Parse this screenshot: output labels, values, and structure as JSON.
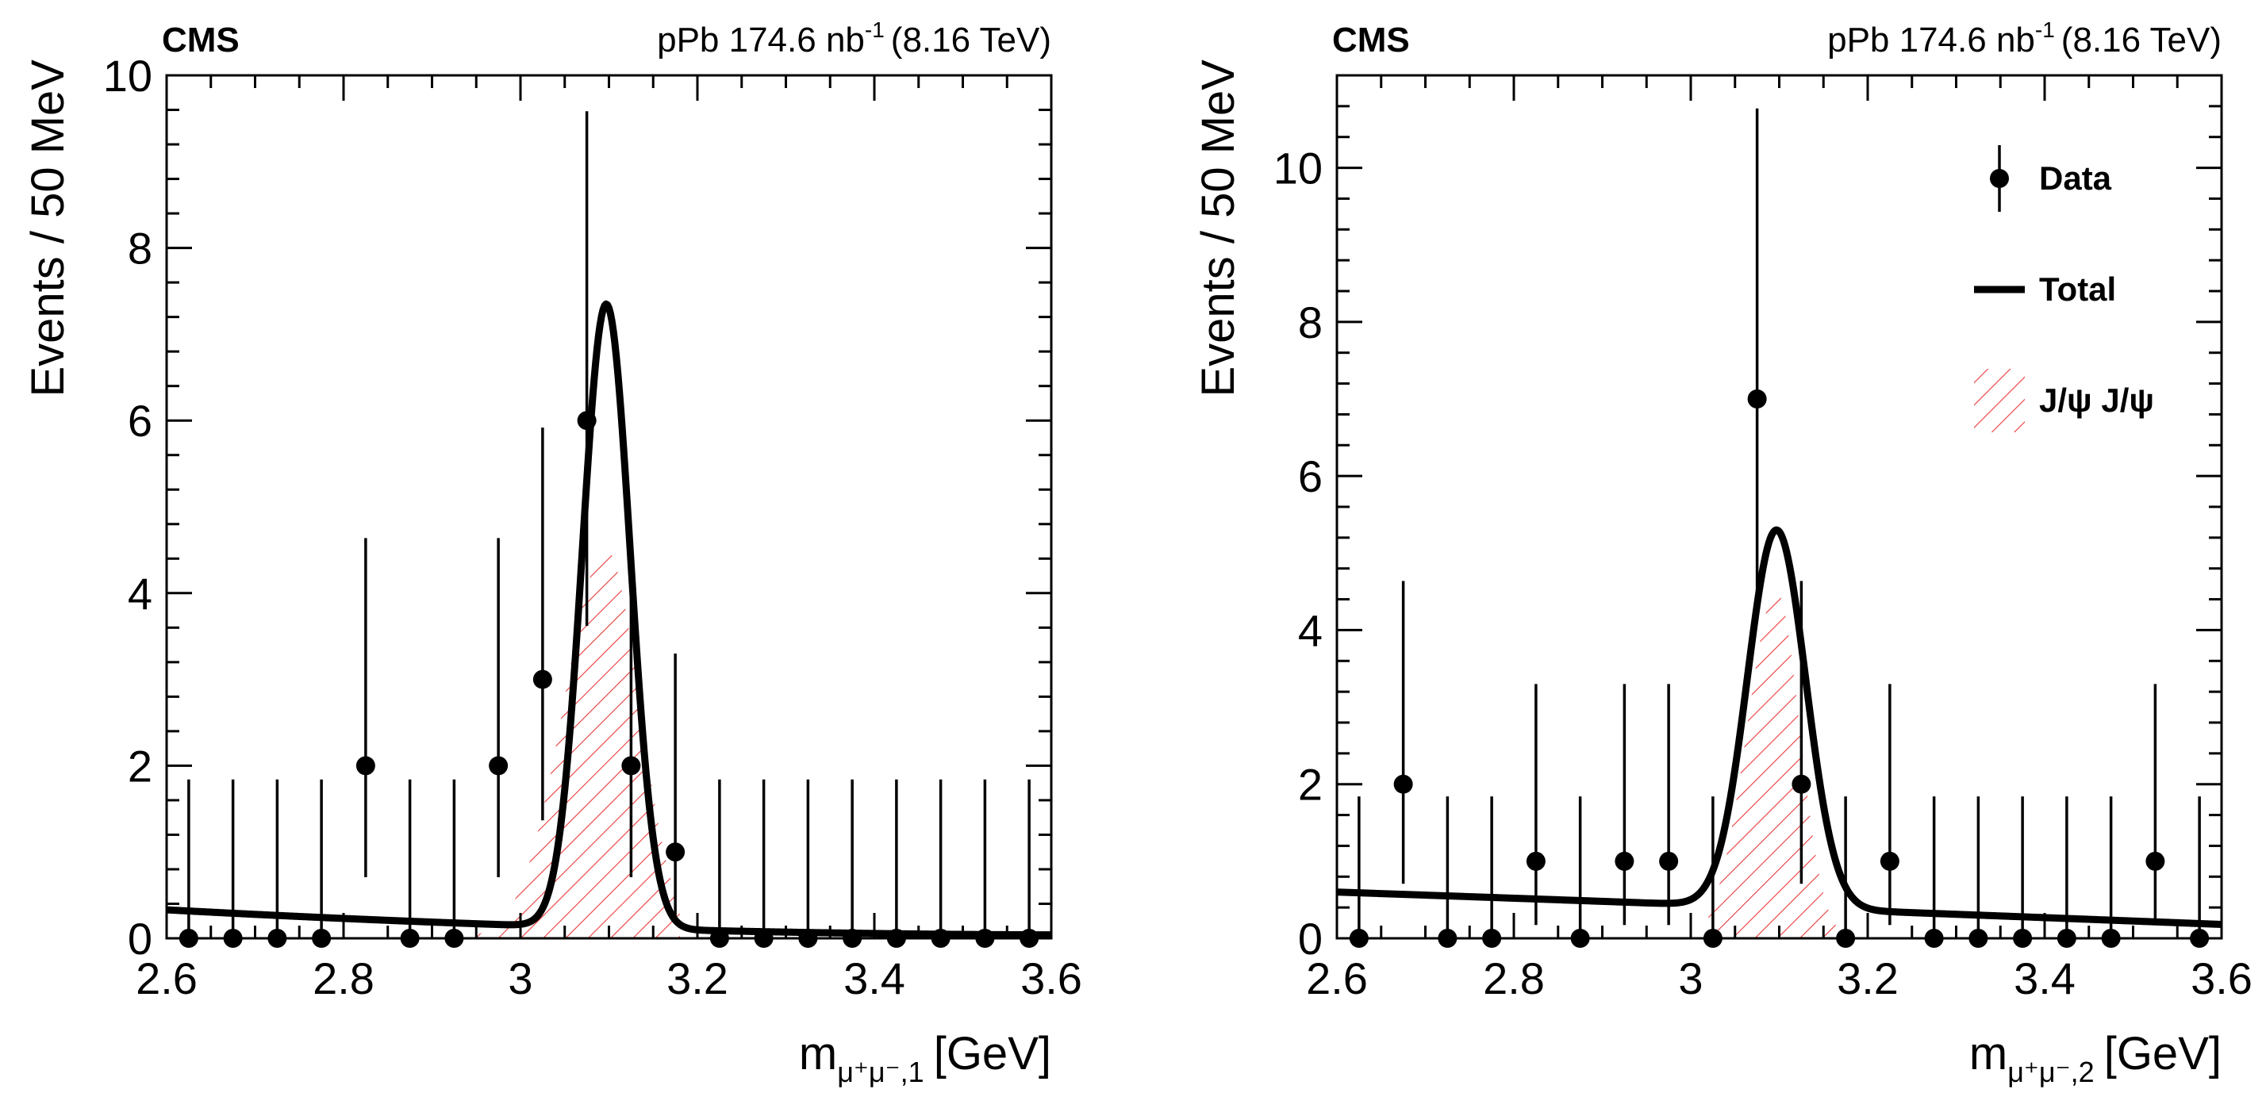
{
  "chart_data": [
    {
      "type": "scatter",
      "experiment": "CMS",
      "lumi": {
        "prefix": "pPb 174.6 nb",
        "sup": "-1",
        "suffix": "(8.16 TeV)"
      },
      "ylabel": "Events / 50 MeV",
      "xlabel": {
        "main": "m",
        "sub": "μ⁺μ⁻,1",
        "unit": "[GeV]"
      },
      "xlim": [
        2.6,
        3.6
      ],
      "ylim": [
        0,
        10
      ],
      "x_ticks": [
        "2.6",
        "2.8",
        "3",
        "3.2",
        "3.4",
        "3.6"
      ],
      "y_ticks": [
        "0",
        "2",
        "4",
        "6",
        "8",
        "10"
      ],
      "data_points": {
        "x": [
          2.625,
          2.675,
          2.725,
          2.775,
          2.825,
          2.875,
          2.925,
          2.975,
          3.025,
          3.075,
          3.125,
          3.175,
          3.225,
          3.275,
          3.325,
          3.375,
          3.425,
          3.475,
          3.525,
          3.575
        ],
        "y": [
          0,
          0,
          0,
          0,
          2,
          0,
          0,
          2,
          3,
          6,
          2,
          1,
          0,
          0,
          0,
          0,
          0,
          0,
          0,
          0
        ]
      },
      "total_fit": {
        "peak_mass": 3.097,
        "peak_height": 7.35,
        "sigma": 0.027,
        "background_at_2.6": 0.33,
        "background_at_2.8": 0.23,
        "background_at_3.6": 0.04
      },
      "signal": {
        "label": "J/ψ J/ψ",
        "peak_mass": 3.097,
        "peak_height": 4.5,
        "x_range": [
          2.95,
          3.18
        ]
      }
    },
    {
      "type": "scatter",
      "experiment": "CMS",
      "lumi": {
        "prefix": "pPb 174.6 nb",
        "sup": "-1",
        "suffix": "(8.16 TeV)"
      },
      "ylabel": "Events / 50 MeV",
      "xlabel": {
        "main": "m",
        "sub": "μ⁺μ⁻,2",
        "unit": "[GeV]"
      },
      "xlim": [
        2.6,
        3.6
      ],
      "ylim": [
        0,
        11.2
      ],
      "x_ticks": [
        "2.6",
        "2.8",
        "3",
        "3.2",
        "3.4",
        "3.6"
      ],
      "y_ticks": [
        "0",
        "2",
        "4",
        "6",
        "8",
        "10"
      ],
      "data_points": {
        "x": [
          2.625,
          2.675,
          2.725,
          2.775,
          2.825,
          2.875,
          2.925,
          2.975,
          3.025,
          3.075,
          3.125,
          3.175,
          3.225,
          3.275,
          3.325,
          3.375,
          3.425,
          3.475,
          3.525,
          3.575
        ],
        "y": [
          0,
          2,
          0,
          0,
          1,
          0,
          1,
          1,
          0,
          7,
          2,
          0,
          1,
          0,
          0,
          0,
          0,
          0,
          1,
          0
        ]
      },
      "total_fit": {
        "peak_mass": 3.097,
        "peak_height": 5.3,
        "sigma": 0.033,
        "background_at_2.6": 0.6,
        "background_at_2.85": 0.5,
        "background_at_3.6": 0.18
      },
      "signal": {
        "label": "J/ψ J/ψ",
        "peak_mass": 3.097,
        "peak_height": 4.5,
        "x_range": [
          3.02,
          3.18
        ]
      },
      "legend": {
        "position": "top-right",
        "entries": [
          {
            "label": "Data",
            "style": "marker"
          },
          {
            "label": "Total",
            "style": "line"
          },
          {
            "label": "J/ψ J/ψ",
            "style": "hatch",
            "color": "#d62728"
          }
        ]
      }
    }
  ]
}
